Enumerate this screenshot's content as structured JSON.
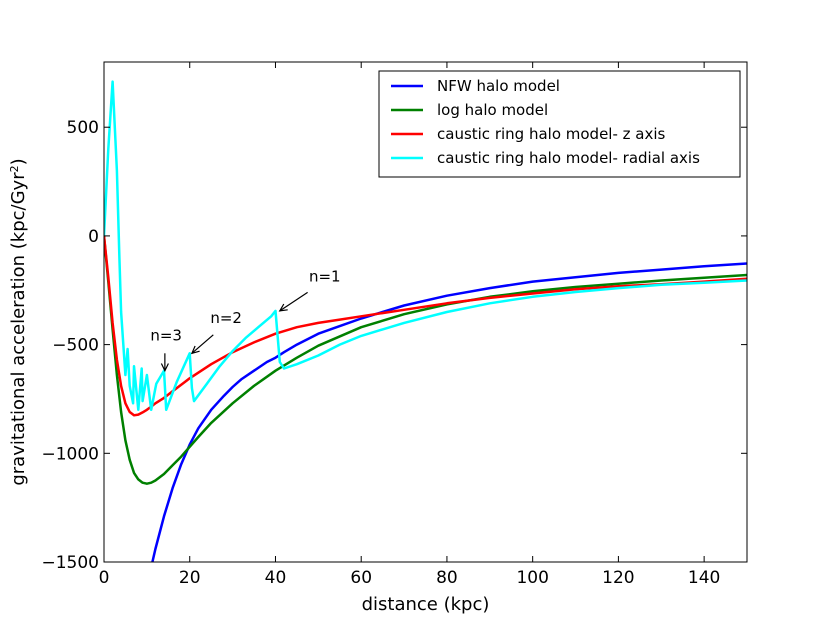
{
  "chart_data": {
    "type": "line",
    "title": "",
    "xlabel": "distance (kpc)",
    "ylabel_main": "gravitational acceleration (kpc/Gyr",
    "ylabel_sup": "2",
    "ylabel_close": ")",
    "xlim": [
      0,
      150
    ],
    "ylim": [
      -1500,
      800
    ],
    "xticks": [
      0,
      20,
      40,
      60,
      80,
      100,
      120,
      140
    ],
    "xtick_labels": [
      "0",
      "20",
      "40",
      "60",
      "80",
      "100",
      "120",
      "140"
    ],
    "yticks": [
      -1500,
      -1000,
      -500,
      0,
      500
    ],
    "ytick_labels": [
      "−1500",
      "−1000",
      "−500",
      "0",
      "500"
    ],
    "legend_position": "top-right",
    "series": [
      {
        "name": "NFW halo model",
        "color": "#0000ff",
        "x": [
          11.3,
          12,
          14,
          16,
          18,
          20,
          22,
          25,
          28,
          30,
          32,
          35,
          38,
          40,
          42,
          45,
          50,
          55,
          60,
          65,
          70,
          80,
          90,
          100,
          110,
          120,
          130,
          140,
          150
        ],
        "y": [
          -1500,
          -1440,
          -1290,
          -1160,
          -1050,
          -960,
          -885,
          -800,
          -735,
          -695,
          -660,
          -620,
          -580,
          -560,
          -535,
          -500,
          -450,
          -415,
          -380,
          -350,
          -320,
          -275,
          -240,
          -210,
          -190,
          -170,
          -155,
          -140,
          -127
        ]
      },
      {
        "name": "log halo model",
        "color": "#008000",
        "x": [
          0,
          1,
          2,
          3,
          4,
          5,
          6,
          7,
          8,
          9,
          10,
          11,
          12,
          13,
          14,
          15,
          16,
          18,
          20,
          22,
          25,
          30,
          35,
          40,
          45,
          50,
          60,
          70,
          80,
          90,
          100,
          110,
          120,
          130,
          140,
          150
        ],
        "y": [
          0,
          -210,
          -430,
          -640,
          -810,
          -940,
          -1030,
          -1090,
          -1120,
          -1135,
          -1140,
          -1135,
          -1125,
          -1110,
          -1095,
          -1075,
          -1055,
          -1015,
          -970,
          -925,
          -860,
          -770,
          -690,
          -620,
          -560,
          -505,
          -420,
          -360,
          -315,
          -280,
          -255,
          -235,
          -220,
          -205,
          -192,
          -180
        ]
      },
      {
        "name": "caustic ring halo model- z axis",
        "color": "#ff0000",
        "x": [
          0,
          1,
          2,
          3,
          4,
          5,
          6,
          7,
          8,
          9,
          10,
          11,
          12,
          14,
          16,
          18,
          20,
          25,
          30,
          35,
          40,
          45,
          50,
          55,
          60,
          70,
          80,
          90,
          100,
          110,
          120,
          130,
          140,
          150
        ],
        "y": [
          0,
          -190,
          -400,
          -570,
          -690,
          -770,
          -810,
          -825,
          -822,
          -812,
          -800,
          -785,
          -770,
          -745,
          -715,
          -685,
          -655,
          -590,
          -535,
          -490,
          -450,
          -420,
          -400,
          -385,
          -370,
          -340,
          -310,
          -285,
          -265,
          -245,
          -232,
          -222,
          -210,
          -197
        ]
      },
      {
        "name": "caustic ring halo model- radial axis",
        "color": "#00ffff",
        "x": [
          0,
          1,
          2,
          3,
          3.6,
          4,
          5,
          5.5,
          6,
          6.8,
          7,
          8,
          8.8,
          9,
          10,
          11,
          12,
          12.2,
          14,
          14.5,
          17,
          20,
          20.5,
          21,
          24,
          27,
          30,
          33,
          36,
          39,
          40,
          41,
          42,
          45,
          50,
          55,
          60,
          65,
          70,
          80,
          90,
          100,
          110,
          120,
          130,
          140,
          150
        ],
        "y": [
          0,
          400,
          710,
          300,
          -100,
          -350,
          -640,
          -520,
          -690,
          -770,
          -600,
          -800,
          -610,
          -760,
          -640,
          -800,
          -700,
          -680,
          -620,
          -800,
          -670,
          -540,
          -700,
          -760,
          -680,
          -600,
          -530,
          -470,
          -420,
          -370,
          -345,
          -580,
          -610,
          -590,
          -550,
          -500,
          -460,
          -430,
          -400,
          -350,
          -310,
          -280,
          -258,
          -240,
          -225,
          -215,
          -205
        ]
      }
    ],
    "annotations": [
      {
        "text": "n=1",
        "x": 51.5,
        "y": -210,
        "arrow_from": [
          47.5,
          -260
        ],
        "arrow_to": [
          41,
          -345
        ]
      },
      {
        "text": "n=2",
        "x": 28.5,
        "y": -400,
        "arrow_from": [
          25.5,
          -455
        ],
        "arrow_to": [
          20.5,
          -540
        ]
      },
      {
        "text": "n=3",
        "x": 14.5,
        "y": -480,
        "arrow_from": [
          14.2,
          -540
        ],
        "arrow_to": [
          14.2,
          -620
        ]
      }
    ]
  }
}
